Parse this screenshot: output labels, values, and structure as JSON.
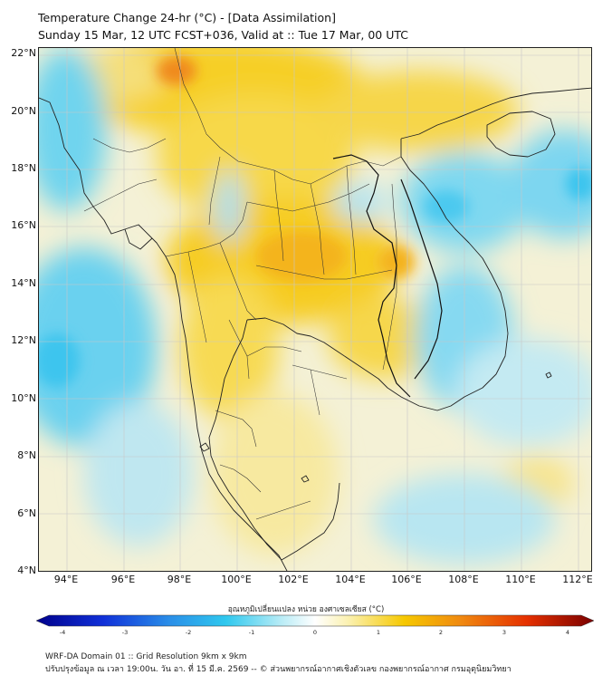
{
  "title": {
    "line1": "Temperature Change 24-hr (°C) - [Data Assimilation]",
    "line2": "Sunday 15 Mar, 12 UTC FCST+036, Valid at :: Tue 17 Mar, 00 UTC"
  },
  "axes": {
    "lat_labels": [
      "22°N",
      "20°N",
      "18°N",
      "16°N",
      "14°N",
      "12°N",
      "10°N",
      "8°N",
      "6°N",
      "4°N"
    ],
    "lon_labels": [
      "94°E",
      "96°E",
      "98°E",
      "100°E",
      "102°E",
      "104°E",
      "106°E",
      "108°E",
      "110°E",
      "112°E"
    ],
    "lat_range": [
      4,
      22
    ],
    "lon_range": [
      93,
      112.5
    ]
  },
  "colorbar": {
    "label": "อุณหภูมิเปลี่ยนแปลง หน่วย องศาเซลเซียส (°C)",
    "ticks": [
      "-4",
      "-3",
      "-2",
      "-1",
      "0",
      "1",
      "2",
      "3",
      "4"
    ],
    "range": [
      -4,
      4
    ],
    "colors": {
      "min": "#00008b",
      "cool": "#2fc8ee",
      "neutral": "#ffffff",
      "warm": "#f6c800",
      "hot": "#e53000",
      "max": "#7a0000"
    }
  },
  "footer": {
    "line1": "WRF-DA Domain 01 :: Grid Resolution 9km x 9km",
    "line2": "ปรับปรุงข้อมูล ณ เวลา 19:00น. วัน อา. ที่ 15 มี.ค. 2569 -- © ส่วนพยากรณ์อากาศเชิงตัวเลข กองพยากรณ์อากาศ กรมอุตุนิยมวิทยา"
  }
}
